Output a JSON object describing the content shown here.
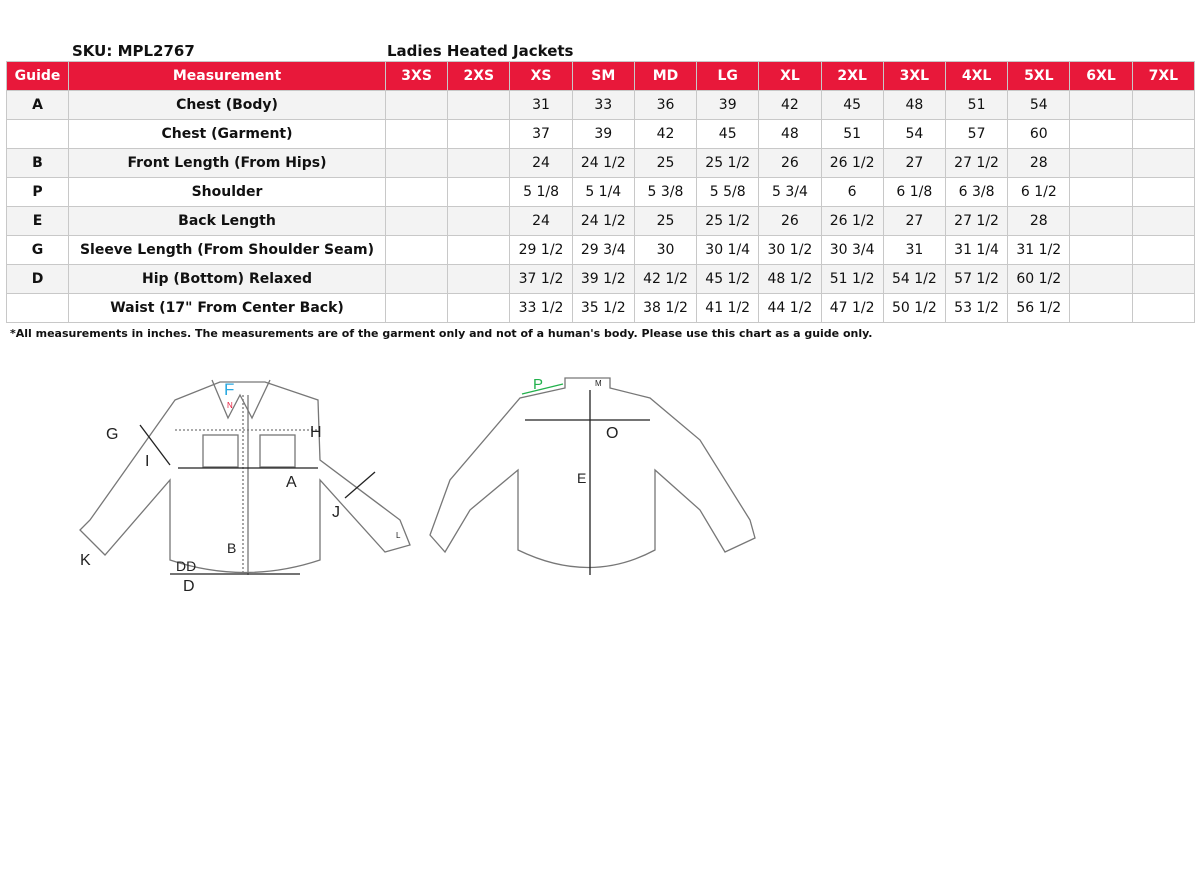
{
  "sku_label": "SKU: MPL2767",
  "title": "Ladies Heated Jackets",
  "headers": [
    "Guide",
    "Measurement",
    "3XS",
    "2XS",
    "XS",
    "SM",
    "MD",
    "LG",
    "XL",
    "2XL",
    "3XL",
    "4XL",
    "5XL",
    "6XL",
    "7XL"
  ],
  "rows": [
    {
      "guide": "A",
      "m": "Chest (Body)",
      "v": [
        "",
        "",
        "31",
        "33",
        "36",
        "39",
        "42",
        "45",
        "48",
        "51",
        "54",
        "",
        ""
      ]
    },
    {
      "guide": "",
      "m": "Chest (Garment)",
      "v": [
        "",
        "",
        "37",
        "39",
        "42",
        "45",
        "48",
        "51",
        "54",
        "57",
        "60",
        "",
        ""
      ]
    },
    {
      "guide": "B",
      "m": "Front Length (From Hips)",
      "v": [
        "",
        "",
        "24",
        "24 1/2",
        "25",
        "25 1/2",
        "26",
        "26 1/2",
        "27",
        "27 1/2",
        "28",
        "",
        ""
      ]
    },
    {
      "guide": "P",
      "m": "Shoulder",
      "v": [
        "",
        "",
        "5 1/8",
        "5 1/4",
        "5 3/8",
        "5 5/8",
        "5 3/4",
        "6",
        "6 1/8",
        "6 3/8",
        "6 1/2",
        "",
        ""
      ]
    },
    {
      "guide": "E",
      "m": "Back Length",
      "v": [
        "",
        "",
        "24",
        "24 1/2",
        "25",
        "25 1/2",
        "26",
        "26 1/2",
        "27",
        "27 1/2",
        "28",
        "",
        ""
      ]
    },
    {
      "guide": "G",
      "m": "Sleeve Length (From Shoulder Seam)",
      "v": [
        "",
        "",
        "29 1/2",
        "29 3/4",
        "30",
        "30 1/4",
        "30 1/2",
        "30 3/4",
        "31",
        "31 1/4",
        "31 1/2",
        "",
        ""
      ]
    },
    {
      "guide": "D",
      "m": "Hip (Bottom) Relaxed",
      "v": [
        "",
        "",
        "37 1/2",
        "39 1/2",
        "42 1/2",
        "45 1/2",
        "48 1/2",
        "51 1/2",
        "54 1/2",
        "57 1/2",
        "60 1/2",
        "",
        ""
      ]
    },
    {
      "guide": "",
      "m": "Waist (17\" From Center Back)",
      "v": [
        "",
        "",
        "33 1/2",
        "35 1/2",
        "38 1/2",
        "41 1/2",
        "44 1/2",
        "47 1/2",
        "50 1/2",
        "53 1/2",
        "56 1/2",
        "",
        ""
      ]
    }
  ],
  "note": "*All measurements in inches. The measurements are of the garment only and not of a human's body. Please use this chart as a guide only.",
  "diagram_labels": {
    "F": "F",
    "N": "N",
    "G": "G",
    "H": "H",
    "I": "I",
    "A": "A",
    "J": "J",
    "L": "L",
    "B": "B",
    "K": "K",
    "DD": "DD",
    "D": "D",
    "P": "P",
    "M": "M",
    "O": "O",
    "E": "E"
  },
  "colors": {
    "header": "#e8183a",
    "F": "#29a8e0",
    "N": "#e8183a",
    "P": "#22b14c"
  }
}
